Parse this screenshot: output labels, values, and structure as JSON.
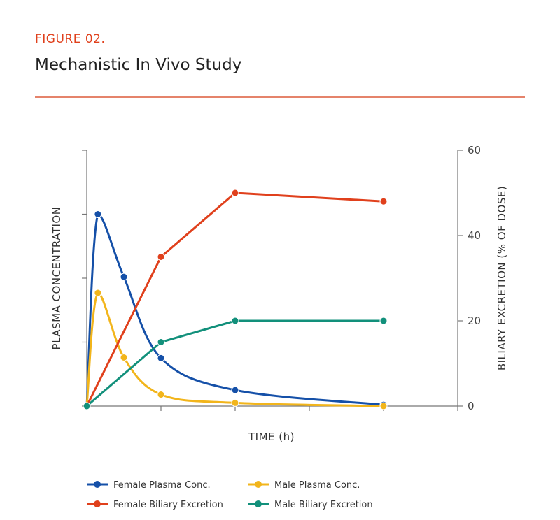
{
  "header": {
    "figure_label": "FIGURE 02.",
    "title": "Mechanistic In Vivo Study"
  },
  "chart_data": {
    "type": "line",
    "xlabel": "TIME (h)",
    "y_left_label": "PLASMA CONCENTRATION",
    "y_right_label": "BILIARY EXCRETION (% OF DOSE)",
    "x_ticks": [
      1,
      2,
      3,
      4,
      5
    ],
    "x_range": [
      0,
      5
    ],
    "y_left_ticks": [
      0,
      1,
      2,
      3,
      4
    ],
    "y_left_range": [
      0,
      4
    ],
    "y_left_tick_labels_shown": false,
    "y_right_ticks": [
      0,
      20,
      40,
      60
    ],
    "y_right_range": [
      0,
      60
    ],
    "legend_position": "bottom",
    "series": [
      {
        "name": "Female Plasma Conc.",
        "axis": "left",
        "color": "#1550a8",
        "x": [
          0,
          0.15,
          0.5,
          1,
          2,
          4
        ],
        "y": [
          0,
          3.0,
          2.02,
          0.75,
          0.25,
          0.02
        ]
      },
      {
        "name": "Male Plasma Conc.",
        "axis": "left",
        "color": "#f2b51b",
        "x": [
          0,
          0.15,
          0.5,
          1,
          2,
          4
        ],
        "y": [
          0,
          1.77,
          0.76,
          0.18,
          0.05,
          0.0
        ]
      },
      {
        "name": "Female Biliary Excretion",
        "axis": "right",
        "color": "#e0401c",
        "x": [
          0,
          1,
          2,
          4
        ],
        "y": [
          0,
          35,
          50,
          48
        ]
      },
      {
        "name": "Male Biliary Excretion",
        "axis": "right",
        "color": "#12907b",
        "x": [
          0,
          1,
          2,
          4
        ],
        "y": [
          0,
          15,
          20,
          20
        ]
      }
    ]
  }
}
